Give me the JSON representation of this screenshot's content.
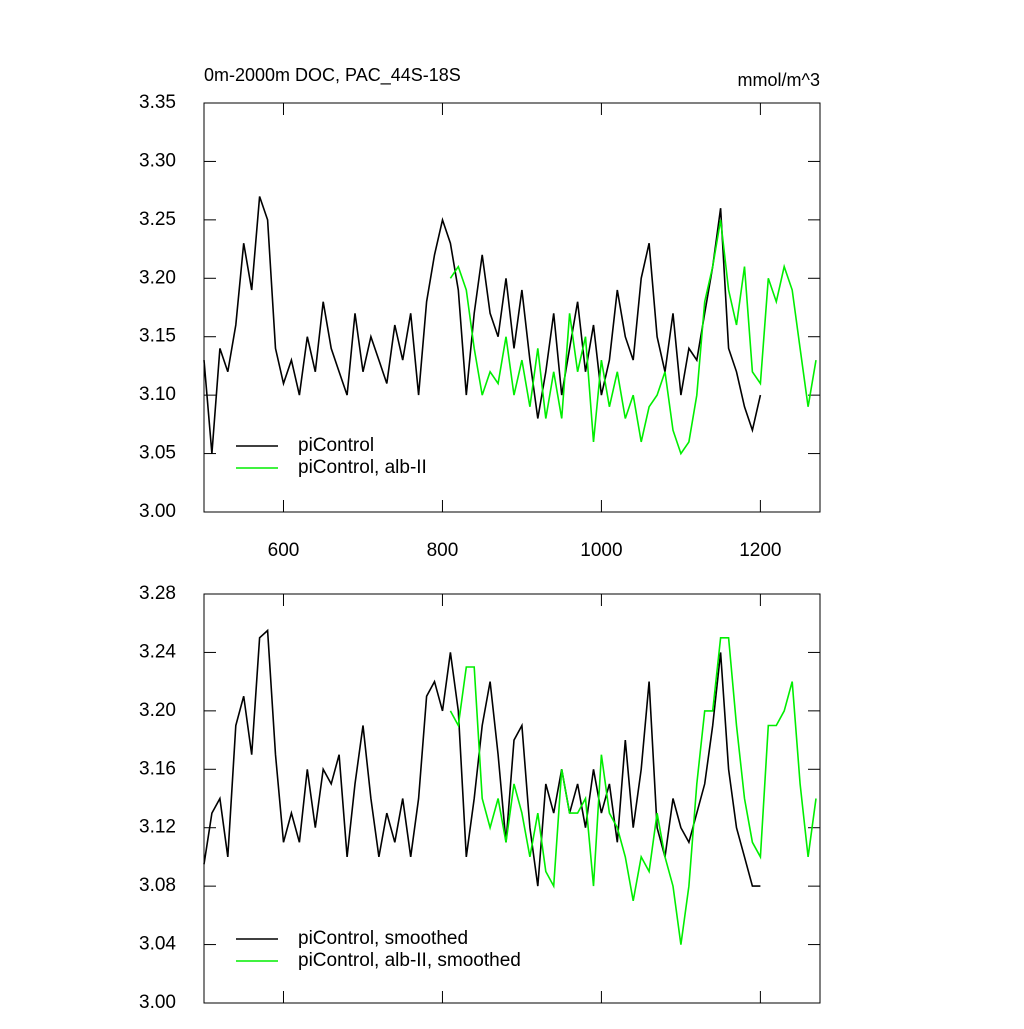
{
  "chart_data": [
    {
      "type": "line",
      "title": "0m-2000m DOC, PAC_44S-18S",
      "units": "mmol/m^3",
      "xlim": [
        500,
        1275
      ],
      "xticks": [
        600,
        800,
        1000,
        1200
      ],
      "show_xtick_labels": true,
      "ylim": [
        3.0,
        3.35
      ],
      "yticks": [
        {
          "value": 3.0,
          "label": "3.00"
        },
        {
          "value": 3.05,
          "label": "3.05"
        },
        {
          "value": 3.1,
          "label": "3.10"
        },
        {
          "value": 3.15,
          "label": "3.15"
        },
        {
          "value": 3.2,
          "label": "3.20"
        },
        {
          "value": 3.25,
          "label": "3.25"
        },
        {
          "value": 3.3,
          "label": "3.30"
        },
        {
          "value": 3.35,
          "label": "3.35"
        }
      ],
      "legend": "lower left",
      "series": [
        {
          "name": "piControl",
          "color": "#000000",
          "x": [
            500,
            510,
            520,
            530,
            540,
            550,
            560,
            570,
            580,
            590,
            600,
            610,
            620,
            630,
            640,
            650,
            660,
            670,
            680,
            690,
            700,
            710,
            720,
            730,
            740,
            750,
            760,
            770,
            780,
            790,
            800,
            810,
            820,
            830,
            840,
            850,
            860,
            870,
            880,
            890,
            900,
            910,
            920,
            930,
            940,
            950,
            960,
            970,
            980,
            990,
            1000,
            1010,
            1020,
            1030,
            1040,
            1050,
            1060,
            1070,
            1080,
            1090,
            1100,
            1110,
            1120,
            1130,
            1140,
            1150,
            1160,
            1170,
            1180,
            1190,
            1200
          ],
          "values": [
            3.13,
            3.05,
            3.14,
            3.12,
            3.16,
            3.23,
            3.19,
            3.27,
            3.25,
            3.14,
            3.11,
            3.13,
            3.1,
            3.15,
            3.12,
            3.18,
            3.14,
            3.12,
            3.1,
            3.17,
            3.12,
            3.15,
            3.13,
            3.11,
            3.16,
            3.13,
            3.17,
            3.1,
            3.18,
            3.22,
            3.25,
            3.23,
            3.19,
            3.1,
            3.17,
            3.22,
            3.17,
            3.15,
            3.2,
            3.14,
            3.19,
            3.13,
            3.08,
            3.12,
            3.17,
            3.1,
            3.14,
            3.18,
            3.12,
            3.16,
            3.1,
            3.13,
            3.19,
            3.15,
            3.13,
            3.2,
            3.23,
            3.15,
            3.12,
            3.17,
            3.1,
            3.14,
            3.13,
            3.17,
            3.21,
            3.26,
            3.14,
            3.12,
            3.09,
            3.07,
            3.1
          ]
        },
        {
          "name": "piControl, alb-II",
          "color": "#00ee00",
          "x": [
            810,
            820,
            830,
            840,
            850,
            860,
            870,
            880,
            890,
            900,
            910,
            920,
            930,
            940,
            950,
            960,
            970,
            980,
            990,
            1000,
            1010,
            1020,
            1030,
            1040,
            1050,
            1060,
            1070,
            1080,
            1090,
            1100,
            1110,
            1120,
            1130,
            1140,
            1150,
            1160,
            1170,
            1180,
            1190,
            1200,
            1210,
            1220,
            1230,
            1240,
            1250,
            1260,
            1270
          ],
          "values": [
            3.2,
            3.21,
            3.19,
            3.14,
            3.1,
            3.12,
            3.11,
            3.15,
            3.1,
            3.13,
            3.09,
            3.14,
            3.08,
            3.12,
            3.08,
            3.17,
            3.12,
            3.15,
            3.06,
            3.13,
            3.09,
            3.12,
            3.08,
            3.1,
            3.06,
            3.09,
            3.1,
            3.12,
            3.07,
            3.05,
            3.06,
            3.1,
            3.18,
            3.21,
            3.25,
            3.19,
            3.16,
            3.21,
            3.12,
            3.11,
            3.2,
            3.18,
            3.21,
            3.19,
            3.14,
            3.09,
            3.13
          ]
        }
      ]
    },
    {
      "type": "line",
      "xlim": [
        500,
        1275
      ],
      "xticks": [
        600,
        800,
        1000,
        1200
      ],
      "show_xtick_labels": false,
      "ylim": [
        3.0,
        3.28
      ],
      "yticks": [
        {
          "value": 3.0,
          "label": "3.00"
        },
        {
          "value": 3.04,
          "label": "3.04"
        },
        {
          "value": 3.08,
          "label": "3.08"
        },
        {
          "value": 3.12,
          "label": "3.12"
        },
        {
          "value": 3.16,
          "label": "3.16"
        },
        {
          "value": 3.2,
          "label": "3.20"
        },
        {
          "value": 3.24,
          "label": "3.24"
        },
        {
          "value": 3.28,
          "label": "3.28"
        }
      ],
      "legend": "lower left",
      "series": [
        {
          "name": "piControl, smoothed",
          "color": "#000000",
          "x": [
            500,
            510,
            520,
            530,
            540,
            550,
            560,
            570,
            580,
            590,
            600,
            610,
            620,
            630,
            640,
            650,
            660,
            670,
            680,
            690,
            700,
            710,
            720,
            730,
            740,
            750,
            760,
            770,
            780,
            790,
            800,
            810,
            820,
            830,
            840,
            850,
            860,
            870,
            880,
            890,
            900,
            910,
            920,
            930,
            940,
            950,
            960,
            970,
            980,
            990,
            1000,
            1010,
            1020,
            1030,
            1040,
            1050,
            1060,
            1070,
            1080,
            1090,
            1100,
            1110,
            1120,
            1130,
            1140,
            1150,
            1160,
            1170,
            1180,
            1190,
            1200
          ],
          "values": [
            3.095,
            3.13,
            3.14,
            3.1,
            3.19,
            3.21,
            3.17,
            3.25,
            3.255,
            3.17,
            3.11,
            3.13,
            3.11,
            3.16,
            3.12,
            3.16,
            3.15,
            3.17,
            3.1,
            3.15,
            3.19,
            3.14,
            3.1,
            3.13,
            3.11,
            3.14,
            3.1,
            3.14,
            3.21,
            3.22,
            3.2,
            3.24,
            3.2,
            3.1,
            3.14,
            3.19,
            3.22,
            3.17,
            3.11,
            3.18,
            3.19,
            3.12,
            3.08,
            3.15,
            3.13,
            3.16,
            3.13,
            3.15,
            3.12,
            3.16,
            3.13,
            3.15,
            3.11,
            3.18,
            3.12,
            3.16,
            3.22,
            3.12,
            3.1,
            3.14,
            3.12,
            3.11,
            3.13,
            3.15,
            3.19,
            3.24,
            3.16,
            3.12,
            3.1,
            3.08,
            3.08
          ]
        },
        {
          "name": "piControl, alb-II, smoothed",
          "color": "#00ee00",
          "x": [
            810,
            820,
            830,
            840,
            850,
            860,
            870,
            880,
            890,
            900,
            910,
            920,
            930,
            940,
            950,
            960,
            970,
            980,
            990,
            1000,
            1010,
            1020,
            1030,
            1040,
            1050,
            1060,
            1070,
            1080,
            1090,
            1100,
            1110,
            1120,
            1130,
            1140,
            1150,
            1160,
            1170,
            1180,
            1190,
            1200,
            1210,
            1220,
            1230,
            1240,
            1250,
            1260,
            1270
          ],
          "values": [
            3.2,
            3.19,
            3.23,
            3.23,
            3.14,
            3.12,
            3.14,
            3.11,
            3.15,
            3.13,
            3.1,
            3.13,
            3.09,
            3.08,
            3.16,
            3.13,
            3.13,
            3.14,
            3.08,
            3.17,
            3.13,
            3.12,
            3.1,
            3.07,
            3.1,
            3.09,
            3.13,
            3.1,
            3.08,
            3.04,
            3.08,
            3.15,
            3.2,
            3.2,
            3.25,
            3.25,
            3.19,
            3.14,
            3.11,
            3.1,
            3.19,
            3.19,
            3.2,
            3.22,
            3.15,
            3.1,
            3.14
          ]
        }
      ]
    }
  ]
}
